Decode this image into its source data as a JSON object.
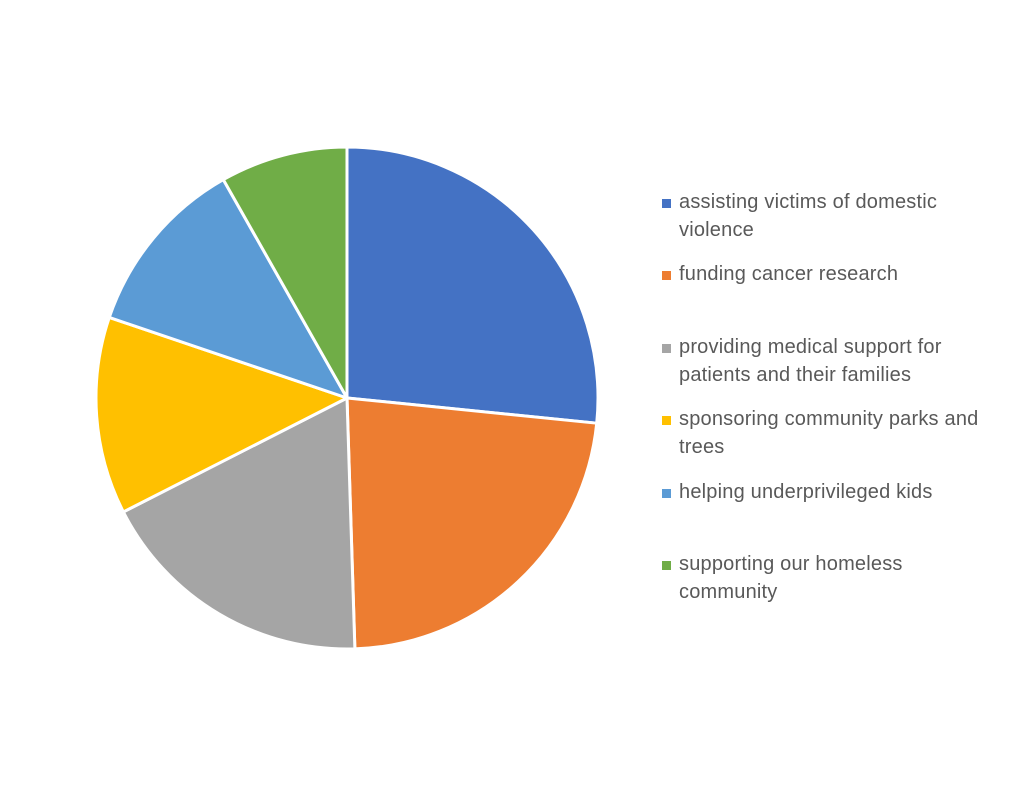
{
  "chart_data": {
    "type": "pie",
    "title": "",
    "legend_position": "right",
    "slices": [
      {
        "label": "assisting victims of domestic violence",
        "value": 26.6,
        "color": "#4472C4"
      },
      {
        "label": "funding cancer research",
        "value": 22.9,
        "color": "#ED7D31"
      },
      {
        "label": "providing medical support for patients and their families",
        "value": 18.0,
        "color": "#A5A5A5"
      },
      {
        "label": "sponsoring community parks and trees",
        "value": 12.7,
        "color": "#FFC000"
      },
      {
        "label": "helping underprivileged kids",
        "value": 11.6,
        "color": "#5B9BD5"
      },
      {
        "label": "supporting our homeless community",
        "value": 8.2,
        "color": "#70AD47"
      }
    ]
  }
}
